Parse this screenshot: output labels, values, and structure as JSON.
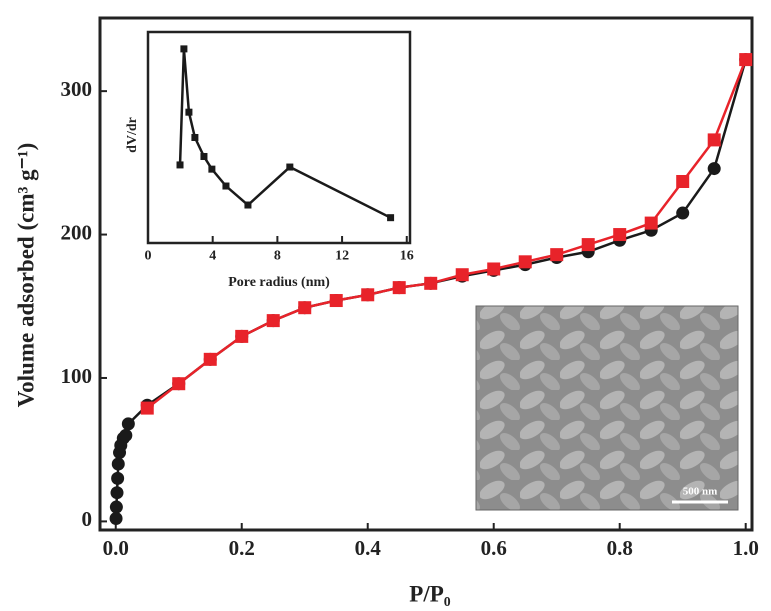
{
  "chart_data": [
    {
      "type": "line",
      "xlabel": "P/P₀",
      "ylabel": "Volume adsorbed (cm³ g⁻¹)",
      "xlim": [
        -0.025,
        1.01
      ],
      "ylim": [
        -6,
        351
      ],
      "xticks": [
        {
          "value": 0,
          "label": "0.0"
        },
        0.2,
        0.4,
        0.6,
        0.8,
        {
          "value": 1,
          "label": "1.0"
        }
      ],
      "yticks": [
        0,
        100,
        200,
        300
      ],
      "series": [
        {
          "color": "#1a1a1a",
          "marker": "circle",
          "x": [
            0.0005,
            0.001,
            0.002,
            0.003,
            0.004,
            0.006,
            0.008,
            0.012,
            0.016,
            0.02,
            0.05,
            0.1,
            0.15,
            0.2,
            0.25,
            0.3,
            0.35,
            0.4,
            0.45,
            0.5,
            0.55,
            0.6,
            0.65,
            0.7,
            0.75,
            0.8,
            0.85,
            0.9,
            0.95,
            1.0
          ],
          "values": [
            2,
            10,
            20,
            30,
            40,
            48,
            53,
            58,
            60,
            68,
            81,
            96,
            113,
            129,
            140,
            149,
            154,
            158,
            163,
            166,
            171,
            175,
            179,
            184,
            188,
            196,
            203,
            215,
            246,
            322
          ]
        },
        {
          "color": "#e8232a",
          "marker": "square",
          "x": [
            0.05,
            0.1,
            0.15,
            0.2,
            0.25,
            0.3,
            0.35,
            0.4,
            0.45,
            0.5,
            0.55,
            0.6,
            0.65,
            0.7,
            0.75,
            0.8,
            0.85,
            0.9,
            0.95,
            1.0
          ],
          "values": [
            79,
            96,
            113,
            129,
            140,
            149,
            154,
            158,
            163,
            166,
            172,
            176,
            181,
            186,
            193,
            200,
            208,
            237,
            266,
            322
          ]
        }
      ]
    },
    {
      "type": "line",
      "xlabel": "Pore radius (nm)",
      "ylabel": "dV/dr",
      "xlim": [
        0,
        16.2
      ],
      "ylim": [
        0,
        100
      ],
      "xticks": [
        0,
        4,
        8,
        12,
        16
      ],
      "color": "#1a1a1a",
      "marker": "square",
      "x": [
        1.98,
        2.22,
        2.53,
        2.9,
        3.46,
        3.95,
        4.82,
        6.18,
        8.77,
        15.0
      ],
      "values": [
        37,
        92,
        62,
        50,
        41,
        35,
        27,
        18,
        36,
        12
      ]
    }
  ],
  "image_inset": {
    "scale_bar": "500 nm"
  }
}
